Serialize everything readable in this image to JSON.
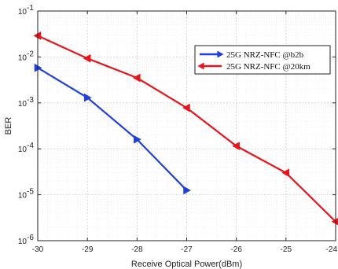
{
  "chart_data": {
    "type": "line",
    "xlabel": "Receive Optical Power(dBm)",
    "ylabel": "BER",
    "xlim": [
      -30,
      -24
    ],
    "ylim": [
      1e-06,
      0.1
    ],
    "yscale": "log",
    "grid": true,
    "legend_position": "top-right",
    "x_ticks": [
      "-30",
      "-29",
      "-28",
      "-27",
      "-26",
      "-25",
      "-24"
    ],
    "y_ticks": [
      {
        "base": "10",
        "exp": "-1"
      },
      {
        "base": "10",
        "exp": "-2"
      },
      {
        "base": "10",
        "exp": "-3"
      },
      {
        "base": "10",
        "exp": "-4"
      },
      {
        "base": "10",
        "exp": "-5"
      },
      {
        "base": "10",
        "exp": "-6"
      }
    ],
    "series": [
      {
        "name": "25G NRZ-NFC @b2b",
        "color": "#1f3fe0",
        "marker": "triangle-right",
        "x": [
          -30,
          -29,
          -28,
          -27
        ],
        "y": [
          0.0058,
          0.0013,
          0.00016,
          1.25e-05
        ]
      },
      {
        "name": "25G NRZ-NFC @20km",
        "color": "#e8141c",
        "marker": "triangle-left",
        "x": [
          -30,
          -29,
          -28,
          -27,
          -26,
          -25,
          -24
        ],
        "y": [
          0.029,
          0.0093,
          0.0035,
          0.00078,
          0.000115,
          3e-05,
          2.6e-06
        ]
      }
    ]
  }
}
